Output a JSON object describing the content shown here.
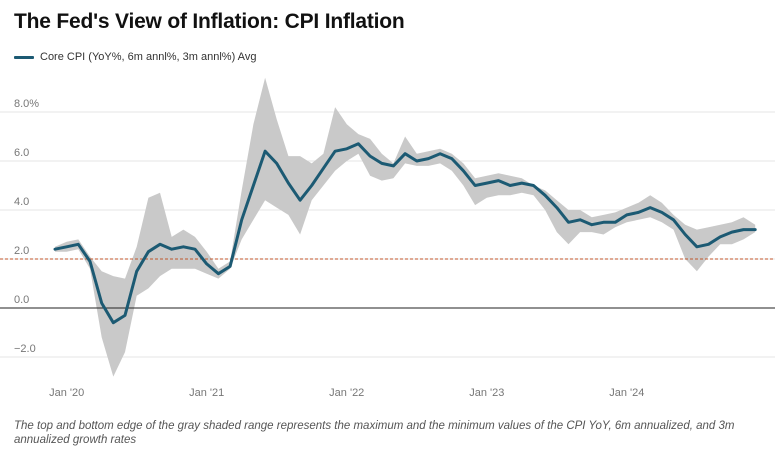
{
  "title": "The Fed's View of Inflation: CPI Inflation",
  "legend": {
    "label": "Core CPI (YoY%, 6m annl%, 3m annl%) Avg"
  },
  "note": "The top and bottom edge of the gray shaded range represents the maximum and the minimum values of the CPI YoY, 6m annualized, and 3m annualized growth rates",
  "colors": {
    "line": "#1c5a73",
    "band": "#c9c9c9",
    "reference": "#c0562b",
    "zero": "#222222",
    "grid": "#e6e6e6"
  },
  "chart_data": {
    "type": "area",
    "title": "The Fed's View of Inflation: CPI Inflation",
    "xlabel": "",
    "ylabel": "",
    "ylim": [
      -2.9,
      9.0
    ],
    "y_ticks": [
      {
        "value": 8,
        "label": "8.0%"
      },
      {
        "value": 6,
        "label": "6.0"
      },
      {
        "value": 4,
        "label": "4.0"
      },
      {
        "value": 2,
        "label": "2.0"
      },
      {
        "value": 0,
        "label": "0.0"
      },
      {
        "value": -2,
        "label": "−2.0"
      }
    ],
    "x_ticks": [
      {
        "index": 1,
        "label": "Jan '20"
      },
      {
        "index": 13,
        "label": "Jan '21"
      },
      {
        "index": 25,
        "label": "Jan '22"
      },
      {
        "index": 37,
        "label": "Jan '23"
      },
      {
        "index": 49,
        "label": "Jan '24"
      }
    ],
    "reference_line": 2.0,
    "grid": true,
    "legend_position": "top-left",
    "series": [
      {
        "name": "Core CPI (YoY%, 6m annl%, 3m annl%) Avg",
        "values": [
          2.4,
          2.5,
          2.6,
          1.9,
          0.2,
          -0.6,
          -0.3,
          1.5,
          2.3,
          2.6,
          2.4,
          2.5,
          2.4,
          1.8,
          1.4,
          1.7,
          3.6,
          5.0,
          6.4,
          5.9,
          5.1,
          4.4,
          5.0,
          5.7,
          6.4,
          6.5,
          6.7,
          6.2,
          5.9,
          5.8,
          6.3,
          6.0,
          6.1,
          6.3,
          6.1,
          5.6,
          5.0,
          5.1,
          5.2,
          5.0,
          5.1,
          5.0,
          4.6,
          4.1,
          3.5,
          3.6,
          3.4,
          3.5,
          3.5,
          3.8,
          3.9,
          4.1,
          3.9,
          3.6,
          3.0,
          2.5,
          2.6,
          2.9,
          3.1,
          3.2,
          3.2
        ]
      }
    ],
    "band": {
      "upper": [
        2.5,
        2.7,
        2.8,
        2.1,
        1.5,
        1.3,
        1.2,
        2.5,
        4.5,
        4.7,
        2.9,
        3.2,
        2.9,
        2.3,
        1.6,
        1.9,
        4.8,
        7.5,
        9.4,
        7.7,
        6.2,
        6.2,
        5.9,
        6.3,
        8.2,
        7.5,
        7.1,
        6.9,
        6.3,
        5.9,
        7.0,
        6.3,
        6.4,
        6.5,
        6.3,
        5.9,
        5.3,
        5.4,
        5.5,
        5.4,
        5.3,
        5.0,
        4.8,
        4.4,
        4.0,
        4.0,
        3.7,
        3.8,
        3.9,
        4.1,
        4.3,
        4.6,
        4.3,
        3.8,
        3.4,
        3.2,
        3.3,
        3.4,
        3.5,
        3.7,
        3.4
      ],
      "lower": [
        2.3,
        2.3,
        2.4,
        1.6,
        -1.2,
        -2.8,
        -1.8,
        0.5,
        0.8,
        1.3,
        1.6,
        1.6,
        1.6,
        1.4,
        1.2,
        1.6,
        2.8,
        3.6,
        4.4,
        4.1,
        3.8,
        3.0,
        4.4,
        5.0,
        5.6,
        6.0,
        6.3,
        5.4,
        5.2,
        5.3,
        5.9,
        5.8,
        5.8,
        5.9,
        5.6,
        5.0,
        4.2,
        4.5,
        4.6,
        4.6,
        4.7,
        4.6,
        4.0,
        3.1,
        2.6,
        3.1,
        3.1,
        3.0,
        3.3,
        3.5,
        3.6,
        3.7,
        3.5,
        3.2,
        2.0,
        1.5,
        2.1,
        2.6,
        2.6,
        2.8,
        3.1
      ]
    }
  }
}
